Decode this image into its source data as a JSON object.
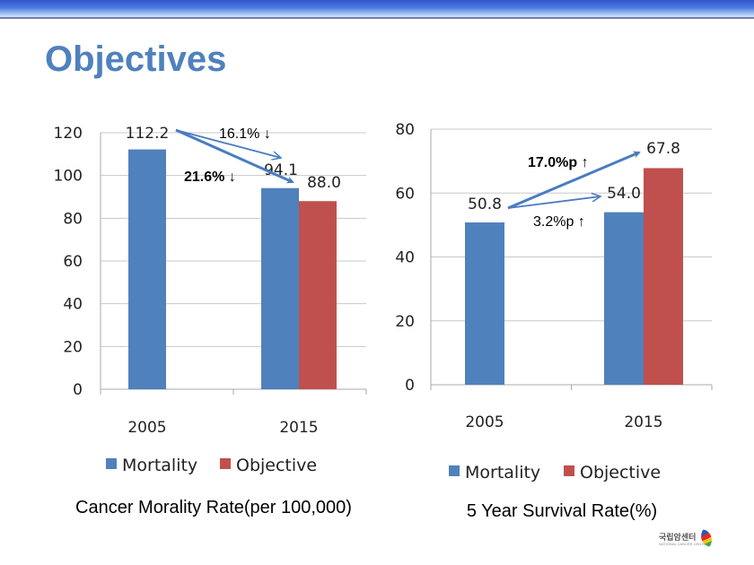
{
  "slide": {
    "title": "Objectives"
  },
  "colors": {
    "mortality": "#4f81bd",
    "objective": "#c0504d",
    "title": "#4f81bd",
    "arrow": "#4a7cc0",
    "grid": "#c8c8c8"
  },
  "logo": {
    "text": "국립암센터",
    "subtext": "NATIONAL CANCER CENTER"
  },
  "chart_data": [
    {
      "type": "bar",
      "title": "Cancer Morality Rate(per 100,000)",
      "categories": [
        "2005",
        "2015"
      ],
      "series": [
        {
          "name": "Mortality",
          "values": [
            112.2,
            94.1
          ]
        },
        {
          "name": "Objective",
          "values": [
            null,
            88.0
          ]
        }
      ],
      "data_labels": [
        "112.2",
        "94.1",
        "88.0"
      ],
      "ylim": [
        0,
        120
      ],
      "yticks": [
        0,
        20,
        40,
        60,
        80,
        100,
        120
      ],
      "grid": true,
      "legend": "bottom",
      "annotations": [
        {
          "text": "16.1% ↓",
          "bold": false,
          "from": "2005 Mortality",
          "to": "2015 Mortality"
        },
        {
          "text": "21.6% ↓",
          "bold": true,
          "from": "2005 Mortality",
          "to": "2015 Objective"
        }
      ]
    },
    {
      "type": "bar",
      "title": "5 Year Survival Rate(%)",
      "categories": [
        "2005",
        "2015"
      ],
      "series": [
        {
          "name": "Mortality",
          "values": [
            50.8,
            54.0
          ]
        },
        {
          "name": "Objective",
          "values": [
            null,
            67.8
          ]
        }
      ],
      "data_labels": [
        "50.8",
        "54.0",
        "67.8"
      ],
      "ylim": [
        0,
        80
      ],
      "yticks": [
        0,
        20,
        40,
        60,
        80
      ],
      "grid": true,
      "legend": "bottom",
      "annotations": [
        {
          "text": "17.0%p ↑",
          "bold": true,
          "from": "2005 Mortality",
          "to": "2015 Objective"
        },
        {
          "text": "3.2%p ↑",
          "bold": false,
          "from": "2005 Mortality",
          "to": "2015 Mortality"
        }
      ]
    }
  ]
}
